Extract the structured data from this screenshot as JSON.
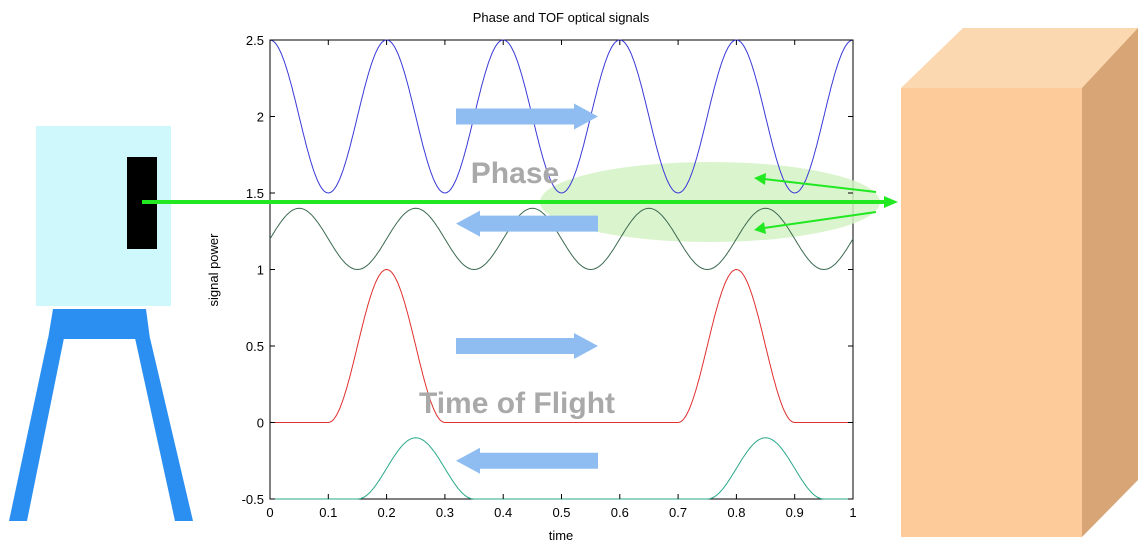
{
  "chart_data": {
    "type": "line",
    "title": "Phase and TOF optical signals",
    "xlabel": "time",
    "ylabel": "signal power",
    "xlim": [
      0,
      1
    ],
    "ylim": [
      -0.5,
      2.5
    ],
    "xticks": [
      "0",
      "0.1",
      "0.2",
      "0.3",
      "0.4",
      "0.5",
      "0.6",
      "0.7",
      "0.8",
      "0.9",
      "1"
    ],
    "yticks": [
      "-0.5",
      "0",
      "0.5",
      "1",
      "1.5",
      "2",
      "2.5"
    ],
    "grid": false,
    "series": [
      {
        "color": "#3a3ad8",
        "kind": "sinusoid",
        "offset": 2.0,
        "amplitude": 0.5,
        "period": 0.2,
        "peak_at": 0.0
      },
      {
        "color": "#3c6a50",
        "kind": "sinusoid",
        "offset": 1.2,
        "amplitude": 0.2,
        "period": 0.2,
        "peak_at": 0.05
      },
      {
        "color": "#e03030",
        "kind": "pulse",
        "peaks_at": [
          0.2,
          0.8
        ],
        "peak_value": 1.0,
        "base_value": 0.0,
        "half_width": 0.05
      },
      {
        "color": "#2aa88a",
        "kind": "pulse",
        "peaks_at": [
          0.25,
          0.85
        ],
        "peak_value": -0.1,
        "base_value": -0.5,
        "half_width": 0.05
      }
    ],
    "annotations": {
      "phase_label": "Phase",
      "tof_label": "Time of Flight",
      "arrows": [
        {
          "direction": "right",
          "at_y": 2.0
        },
        {
          "direction": "left",
          "at_y": 1.3
        },
        {
          "direction": "right",
          "at_y": 0.5
        },
        {
          "direction": "left",
          "at_y": -0.25
        }
      ]
    }
  },
  "colors": {
    "device_body": "#cff8fd",
    "device_lens": "#000000",
    "tripod": "#2b8ff2",
    "box_front": "#fdcb9a",
    "box_top": "#fbd8b0",
    "box_side": "#d8a577",
    "beam": "#22e822",
    "beam_glow": "#c8f0b0",
    "arrow_fill": "#8fbdf2"
  }
}
